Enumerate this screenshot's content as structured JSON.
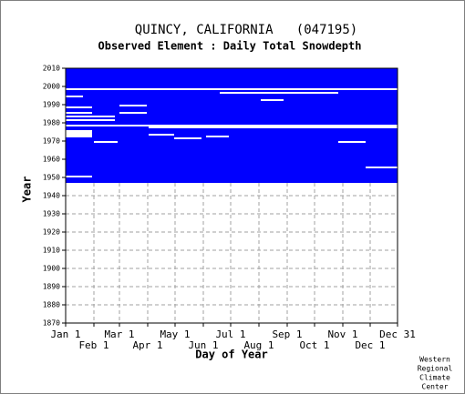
{
  "chart_data": {
    "type": "availability",
    "title": "QUINCY, CALIFORNIA   (047195)",
    "subtitle": "Observed Element : Daily Total Snowdepth",
    "xlabel": "Day of Year",
    "ylabel": "Year",
    "credit": [
      "Western",
      "Regional",
      "Climate",
      "Center"
    ],
    "color": "#0000ff",
    "gap_color": "#ffffff",
    "grid": true,
    "xlim": [
      1,
      365
    ],
    "ylim": [
      1870,
      2010
    ],
    "xticks": [
      {
        "value": 1,
        "label": "Jan 1"
      },
      {
        "value": 32,
        "label": "Feb 1"
      },
      {
        "value": 60,
        "label": "Mar 1"
      },
      {
        "value": 91,
        "label": "Apr 1"
      },
      {
        "value": 121,
        "label": "May 1"
      },
      {
        "value": 152,
        "label": "Jun 1"
      },
      {
        "value": 182,
        "label": "Jul 1"
      },
      {
        "value": 213,
        "label": "Aug 1"
      },
      {
        "value": 244,
        "label": "Sep 1"
      },
      {
        "value": 274,
        "label": "Oct 1"
      },
      {
        "value": 305,
        "label": "Nov 1"
      },
      {
        "value": 335,
        "label": "Dec 1"
      },
      {
        "value": 365,
        "label": "Dec 31"
      }
    ],
    "yticks": [
      1870,
      1880,
      1890,
      1900,
      1910,
      1920,
      1930,
      1940,
      1950,
      1960,
      1970,
      1980,
      1990,
      2000,
      2010
    ],
    "coverage": {
      "year_start": 1948,
      "year_end": 2010,
      "day_start": 1,
      "day_end": 365
    },
    "gaps": [
      {
        "year": 1999,
        "day_start": 1,
        "day_end": 365
      },
      {
        "year": 1997,
        "day_start": 170,
        "day_end": 300
      },
      {
        "year": 1995,
        "day_start": 1,
        "day_end": 20
      },
      {
        "year": 1993,
        "day_start": 215,
        "day_end": 240
      },
      {
        "year": 1990,
        "day_start": 60,
        "day_end": 90
      },
      {
        "year": 1989,
        "day_start": 1,
        "day_end": 30
      },
      {
        "year": 1986,
        "day_start": 1,
        "day_end": 30
      },
      {
        "year": 1986,
        "day_start": 60,
        "day_end": 90
      },
      {
        "year": 1984,
        "day_start": 1,
        "day_end": 55
      },
      {
        "year": 1982,
        "day_start": 1,
        "day_end": 55
      },
      {
        "year": 1979,
        "day_start": 1,
        "day_end": 365
      },
      {
        "year": 1978,
        "day_start": 92,
        "day_end": 365
      },
      {
        "year": 1976,
        "day_start": 1,
        "day_end": 30
      },
      {
        "year": 1975,
        "day_start": 1,
        "day_end": 30
      },
      {
        "year": 1974,
        "day_start": 1,
        "day_end": 30
      },
      {
        "year": 1974,
        "day_start": 92,
        "day_end": 120
      },
      {
        "year": 1973,
        "day_start": 1,
        "day_end": 30
      },
      {
        "year": 1973,
        "day_start": 155,
        "day_end": 180
      },
      {
        "year": 1972,
        "day_start": 120,
        "day_end": 150
      },
      {
        "year": 1970,
        "day_start": 32,
        "day_end": 58
      },
      {
        "year": 1970,
        "day_start": 300,
        "day_end": 330
      },
      {
        "year": 1956,
        "day_start": 330,
        "day_end": 365
      },
      {
        "year": 1951,
        "day_start": 1,
        "day_end": 30
      }
    ]
  }
}
